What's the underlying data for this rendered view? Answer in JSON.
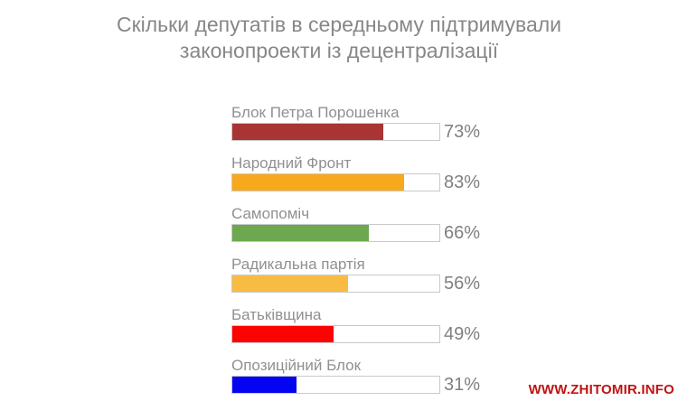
{
  "header": {
    "title_line1": "Скільки депутатів в середньому підтримували",
    "title_line2": "законопроекти із децентралізації"
  },
  "watermark": "WWW.ZHITOMIR.INFO",
  "colors": {
    "background": "#ffffff",
    "title_text": "#878787",
    "label_text": "#909090",
    "value_text": "#808080",
    "track_border": "#c9c9c9",
    "track_fill": "#ffffff",
    "watermark_text": "#c11212"
  },
  "chart_data": {
    "type": "bar",
    "orientation": "horizontal",
    "title": "Скільки депутатів в середньому підтримували законопроекти із децентралізації",
    "categories": [
      "Блок Петра Порошенка",
      "Народний Фронт",
      "Самопоміч",
      "Радикальна партія",
      "Батьківщина",
      "Опозиційний Блок"
    ],
    "values": [
      73,
      83,
      66,
      56,
      49,
      31
    ],
    "value_labels": [
      "73%",
      "83%",
      "66%",
      "56%",
      "49%",
      "31%"
    ],
    "bar_colors": [
      "#a93434",
      "#f8a81c",
      "#6ba84f",
      "#f9bc42",
      "#fa0300",
      "#0404f2"
    ],
    "unit": "%",
    "xlim": [
      0,
      100
    ],
    "grid": false,
    "legend": false
  }
}
